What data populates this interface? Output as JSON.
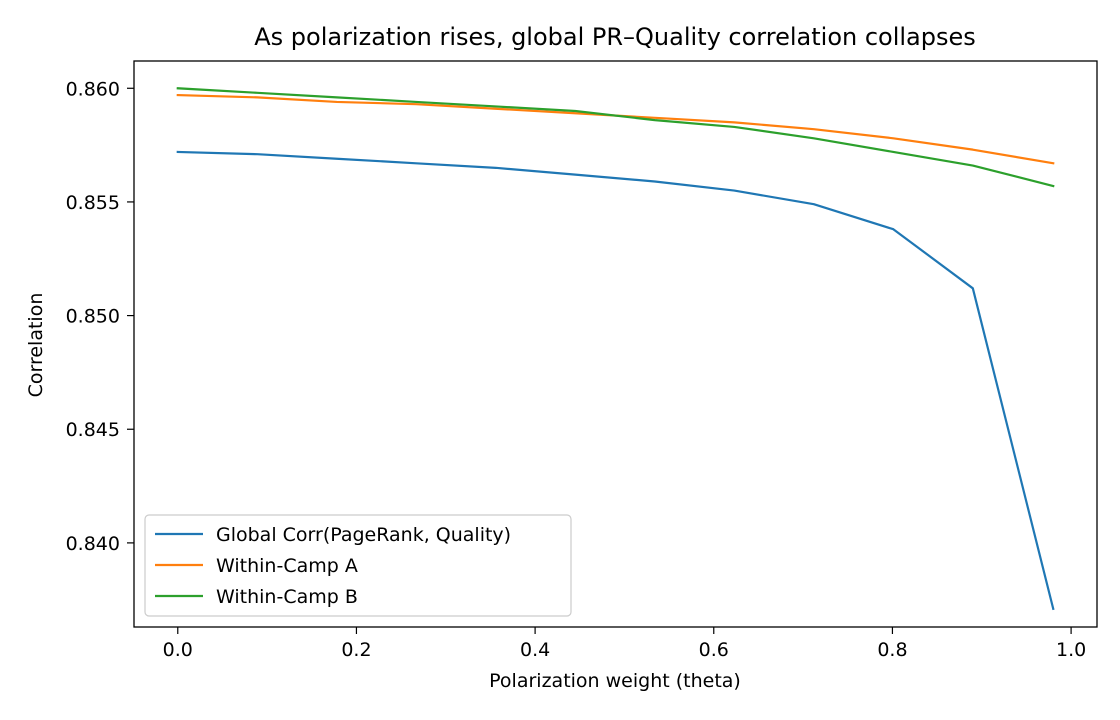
{
  "chart_data": {
    "type": "line",
    "title": "As polarization rises, global PR–Quality correlation collapses",
    "xlabel": "Polarization weight (theta)",
    "ylabel": "Correlation",
    "xlim": [
      -0.049,
      1.029
    ],
    "ylim": [
      0.8363,
      0.8612
    ],
    "xticks": [
      0.0,
      0.2,
      0.4,
      0.6,
      0.8,
      1.0
    ],
    "xtick_labels": [
      "0.0",
      "0.2",
      "0.4",
      "0.6",
      "0.8",
      "1.0"
    ],
    "yticks": [
      0.84,
      0.845,
      0.85,
      0.855,
      0.86
    ],
    "ytick_labels": [
      "0.840",
      "0.845",
      "0.850",
      "0.855",
      "0.860"
    ],
    "x": [
      0.0,
      0.089,
      0.178,
      0.267,
      0.356,
      0.445,
      0.534,
      0.623,
      0.712,
      0.801,
      0.89,
      0.98
    ],
    "series": [
      {
        "name": "Global Corr(PageRank, Quality)",
        "color": "#1f77b4",
        "values": [
          0.8572,
          0.8571,
          0.8569,
          0.8567,
          0.8565,
          0.8562,
          0.8559,
          0.8555,
          0.8549,
          0.8538,
          0.8512,
          0.8371
        ]
      },
      {
        "name": "Within-Camp A",
        "color": "#ff7f0e",
        "values": [
          0.8597,
          0.8596,
          0.8594,
          0.8593,
          0.8591,
          0.8589,
          0.8587,
          0.8585,
          0.8582,
          0.8578,
          0.8573,
          0.8567
        ]
      },
      {
        "name": "Within-Camp B",
        "color": "#2ca02c",
        "values": [
          0.86,
          0.8598,
          0.8596,
          0.8594,
          0.8592,
          0.859,
          0.8586,
          0.8583,
          0.8578,
          0.8572,
          0.8566,
          0.8557
        ]
      }
    ],
    "legend_position": "lower-left",
    "grid": false
  }
}
